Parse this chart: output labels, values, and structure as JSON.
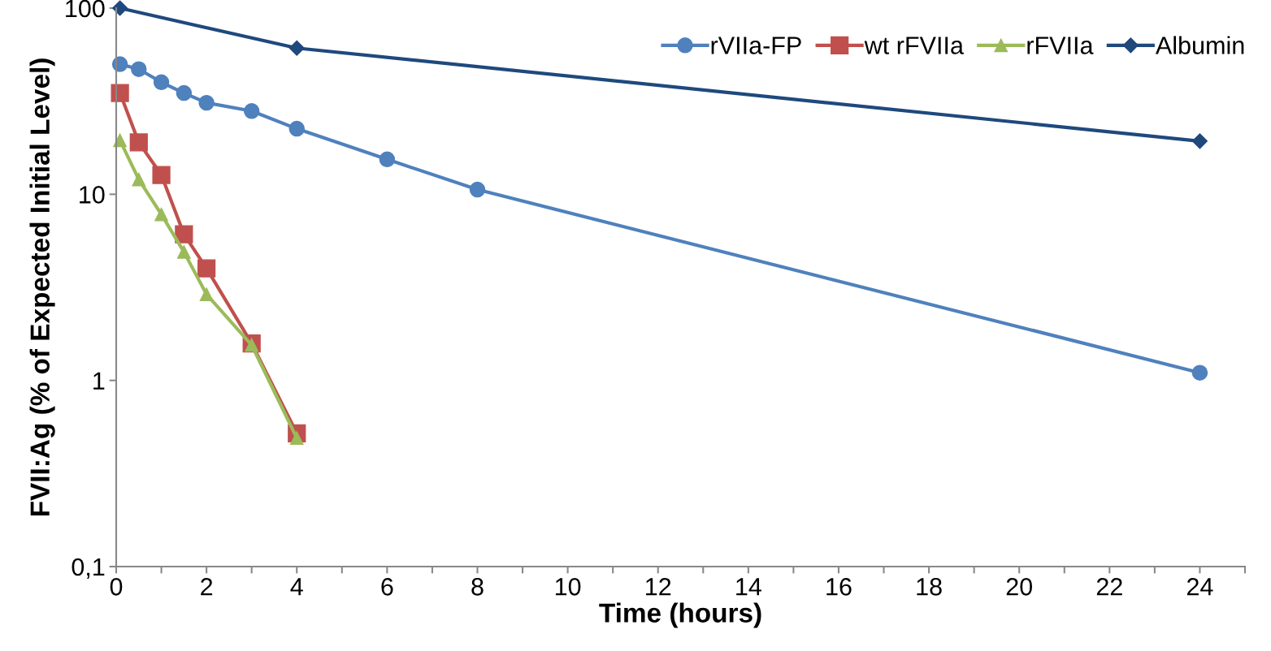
{
  "chart_data": {
    "type": "line",
    "xlabel": "Time (hours)",
    "ylabel": "FVII:Ag (% of Expected Initial Level)",
    "log": "y",
    "grid": false,
    "legend": "top right",
    "line_style": "solid",
    "xlim": [
      0,
      25
    ],
    "ylim": [
      0.1,
      100
    ],
    "xticks": [
      0,
      {
        "value": 1,
        "label": null
      },
      2,
      {
        "value": 3,
        "label": null
      },
      4,
      {
        "value": 5,
        "label": null
      },
      6,
      {
        "value": 7,
        "label": null
      },
      8,
      {
        "value": 9,
        "label": null
      },
      10,
      {
        "value": 11,
        "label": null
      },
      12,
      {
        "value": 13,
        "label": null
      },
      14,
      {
        "value": 15,
        "label": null
      },
      16,
      {
        "value": 17,
        "label": null
      },
      18,
      {
        "value": 19,
        "label": null
      },
      20,
      {
        "value": 21,
        "label": null
      },
      22,
      {
        "value": 23,
        "label": null
      },
      24,
      {
        "value": 25,
        "label": null
      }
    ],
    "yticks": [
      {
        "value": 0.1,
        "label": "0,1"
      },
      1,
      10,
      100
    ],
    "series": [
      {
        "name": "rVIIa-FP",
        "color": "#4f81bd",
        "marker": "circle",
        "x": [
          0.083,
          0.5,
          1,
          1.5,
          2,
          3,
          4,
          6,
          8,
          24
        ],
        "values": [
          50,
          47,
          40,
          35,
          31,
          28,
          22.5,
          15.4,
          10.6,
          1.1
        ]
      },
      {
        "name": "wt rFVIIa",
        "color": "#c0504d",
        "marker": "square",
        "x": [
          0.083,
          0.5,
          1,
          1.5,
          2,
          3,
          4
        ],
        "values": [
          35,
          19,
          12.7,
          6.1,
          4.0,
          1.58,
          0.52
        ]
      },
      {
        "name": "rFVIIa",
        "color": "#9bbb59",
        "marker": "triangle",
        "x": [
          0.083,
          0.5,
          1,
          1.5,
          2,
          3,
          4
        ],
        "values": [
          19.5,
          12,
          7.8,
          4.9,
          2.9,
          1.55,
          0.49
        ]
      },
      {
        "name": "Albumin",
        "color": "#1f497d",
        "marker": "diamond",
        "x": [
          0.083,
          4,
          24
        ],
        "values": [
          100,
          61,
          19.3
        ]
      }
    ]
  }
}
